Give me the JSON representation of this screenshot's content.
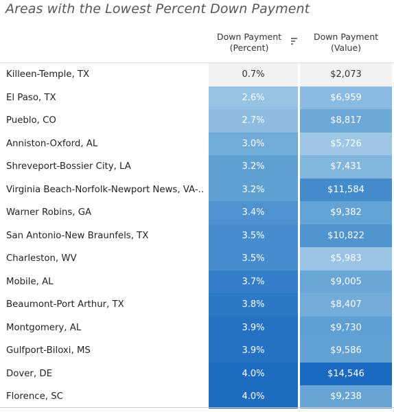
{
  "title": "Areas with the Lowest Percent Down Payment",
  "columns": {
    "percent_line1": "Down Payment",
    "percent_line2": "(Percent)",
    "value_line1": "Down Payment",
    "value_line2": "(Value)"
  },
  "sort_icon": "sort-descending-icon",
  "colors": {
    "lightest": "#f2f2f2",
    "light": "#a9cde8",
    "mid": "#5a9dd2",
    "dark": "#1565c0"
  },
  "chart_data": {
    "type": "table",
    "title": "Areas with the Lowest Percent Down Payment",
    "columns": [
      "Down Payment (Percent)",
      "Down Payment (Value)"
    ],
    "rows": [
      {
        "area": "Killeen-Temple, TX",
        "percent_label": "0.7%",
        "percent": 0.7,
        "value_label": "$2,073",
        "value": 2073
      },
      {
        "area": "El Paso, TX",
        "percent_label": "2.6%",
        "percent": 2.6,
        "value_label": "$6,959",
        "value": 6959
      },
      {
        "area": "Pueblo, CO",
        "percent_label": "2.7%",
        "percent": 2.7,
        "value_label": "$8,817",
        "value": 8817
      },
      {
        "area": "Anniston-Oxford, AL",
        "percent_label": "3.0%",
        "percent": 3.0,
        "value_label": "$5,726",
        "value": 5726
      },
      {
        "area": "Shreveport-Bossier City, LA",
        "percent_label": "3.2%",
        "percent": 3.2,
        "value_label": "$7,431",
        "value": 7431
      },
      {
        "area": "Virginia Beach-Norfolk-Newport News, VA-..",
        "percent_label": "3.2%",
        "percent": 3.2,
        "value_label": "$11,584",
        "value": 11584
      },
      {
        "area": "Warner Robins, GA",
        "percent_label": "3.4%",
        "percent": 3.4,
        "value_label": "$9,382",
        "value": 9382
      },
      {
        "area": "San Antonio-New Braunfels, TX",
        "percent_label": "3.5%",
        "percent": 3.5,
        "value_label": "$10,822",
        "value": 10822
      },
      {
        "area": "Charleston, WV",
        "percent_label": "3.5%",
        "percent": 3.5,
        "value_label": "$5,983",
        "value": 5983
      },
      {
        "area": "Mobile, AL",
        "percent_label": "3.7%",
        "percent": 3.7,
        "value_label": "$9,005",
        "value": 9005
      },
      {
        "area": "Beaumont-Port Arthur, TX",
        "percent_label": "3.8%",
        "percent": 3.8,
        "value_label": "$8,407",
        "value": 8407
      },
      {
        "area": "Montgomery, AL",
        "percent_label": "3.9%",
        "percent": 3.9,
        "value_label": "$9,730",
        "value": 9730
      },
      {
        "area": "Gulfport-Biloxi, MS",
        "percent_label": "3.9%",
        "percent": 3.9,
        "value_label": "$9,586",
        "value": 9586
      },
      {
        "area": "Dover, DE",
        "percent_label": "4.0%",
        "percent": 4.0,
        "value_label": "$14,546",
        "value": 14546
      },
      {
        "area": "Florence, SC",
        "percent_label": "4.0%",
        "percent": 4.0,
        "value_label": "$9,238",
        "value": 9238
      }
    ]
  }
}
